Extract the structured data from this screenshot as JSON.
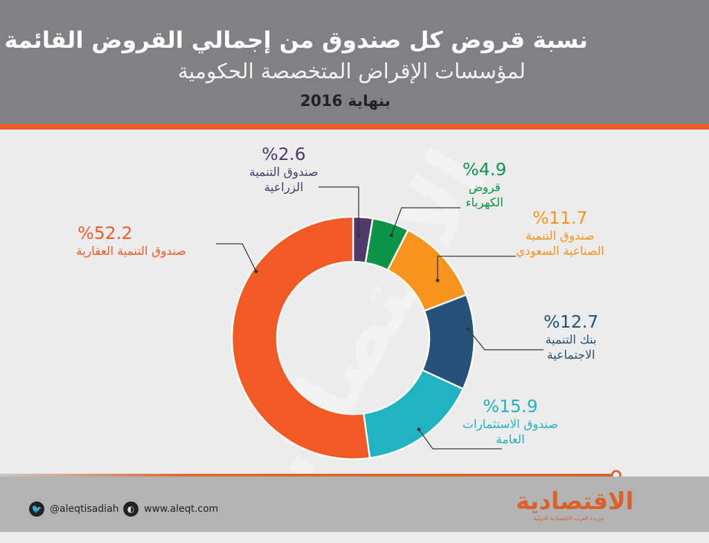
{
  "header": {
    "title": "نسبة قروض كل صندوق من إجمالي القروض القائمة",
    "subtitle": "لمؤسسات الإقراض المتخصصة الحكومية",
    "year": "بنهاية 2016"
  },
  "chart_data": {
    "type": "pie",
    "variant": "donut",
    "start": "top, clockwise",
    "slices": [
      {
        "pct_label": "%2.6",
        "value": 2.6,
        "name": "صندوق التنمية الزراعية",
        "line1": "صندوق التنمية",
        "line2": "الزراعية",
        "color": "#4f3a6b"
      },
      {
        "pct_label": "%4.9",
        "value": 4.9,
        "name": "قروض الكهرباء",
        "line1": "قروض",
        "line2": "الكهرباء",
        "color": "#0e9448"
      },
      {
        "pct_label": "%11.7",
        "value": 11.7,
        "name": "صندوق التنمية الصناعية السعودي",
        "line1": "صندوق التنمية",
        "line2": "الصناعية السعودي",
        "color": "#f7941d"
      },
      {
        "pct_label": "%12.7",
        "value": 12.7,
        "name": "بنك التنمية الاجتماعية",
        "line1": "بنك التنمية",
        "line2": "الاجتماعية",
        "color": "#26527a"
      },
      {
        "pct_label": "%15.9",
        "value": 15.9,
        "name": "صندوق الاستثمارات العامة",
        "line1": "صندوق الاستثمارات",
        "line2": "العامة",
        "color": "#20b3c2"
      },
      {
        "pct_label": "%52.2",
        "value": 52.2,
        "name": "صندوق التنمية العقارية",
        "line1": "صندوق التنمية العقارية",
        "line2": "",
        "color": "#f15a24"
      }
    ]
  },
  "footer": {
    "twitter": "@aleqtisadiah",
    "website": "www.aleqt.com",
    "logo": "الاقتصادية",
    "logo_sub": "جريدة العرب الاقتصادية الدولية",
    "accent": "#d9622a"
  }
}
